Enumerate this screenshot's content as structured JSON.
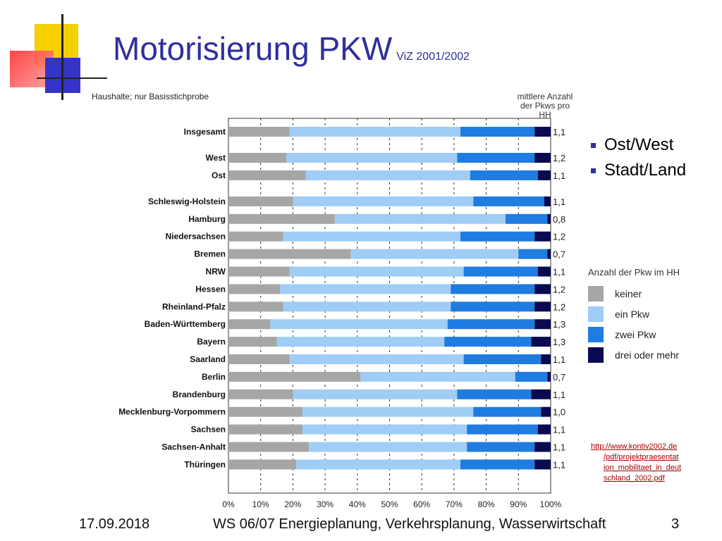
{
  "title": "Motorisierung PKW",
  "title_source": "ViZ 2001/2002",
  "chart_note": "Haushalte; nur Basisstichprobe",
  "column_header": [
    "mittlere Anzahl",
    "der Pkws pro",
    "HH"
  ],
  "bullets": [
    "Ost/West",
    "Stadt/Land"
  ],
  "legend_title": "Anzahl der Pkw  im HH",
  "source_link": [
    "http://www.kontiv2002.de",
    "/pdf/projektpraesentat",
    "ion_mobilitaet_in_deut",
    "schland_2002.pdf"
  ],
  "footer": {
    "date": "17.09.2018",
    "center": "WS 06/07 Energieplanung, Verkehrsplanung, Wasserwirtschaft",
    "page": "3"
  },
  "colors": {
    "keiner": "#a6a6a6",
    "ein": "#9fcdf5",
    "zwei": "#1f7ce0",
    "drei": "#0a0a50",
    "accent": "#2f2f9e"
  },
  "chart_data": {
    "type": "bar",
    "orientation": "horizontal",
    "stacked": true,
    "xlim": [
      0,
      100
    ],
    "x_ticks": [
      "0%",
      "10%",
      "20%",
      "30%",
      "40%",
      "50%",
      "60%",
      "70%",
      "80%",
      "90%",
      "100%"
    ],
    "grid": "vertical dashed",
    "legend_position": "right",
    "series": [
      {
        "name": "keiner",
        "color": "#a6a6a6"
      },
      {
        "name": "ein Pkw",
        "color": "#9fcdf5"
      },
      {
        "name": "zwei Pkw",
        "color": "#1f7ce0"
      },
      {
        "name": "drei oder mehr",
        "color": "#0a0a50"
      }
    ],
    "rows": [
      {
        "label": "Insgesamt",
        "values": [
          19,
          53,
          23,
          5
        ],
        "avg": "1,1",
        "group": 0
      },
      {
        "label": "West",
        "values": [
          18,
          53,
          24,
          5
        ],
        "avg": "1,2",
        "group": 1
      },
      {
        "label": "Ost",
        "values": [
          24,
          51,
          21,
          4
        ],
        "avg": "1,1",
        "group": 1
      },
      {
        "label": "Schleswig-Holstein",
        "values": [
          20,
          56,
          22,
          2
        ],
        "avg": "1,1",
        "group": 2
      },
      {
        "label": "Hamburg",
        "values": [
          33,
          53,
          13,
          1
        ],
        "avg": "0,8",
        "group": 2
      },
      {
        "label": "Niedersachsen",
        "values": [
          17,
          55,
          23,
          5
        ],
        "avg": "1,2",
        "group": 2
      },
      {
        "label": "Bremen",
        "values": [
          38,
          52,
          9,
          1
        ],
        "avg": "0,7",
        "group": 2
      },
      {
        "label": "NRW",
        "values": [
          19,
          54,
          23,
          4
        ],
        "avg": "1,1",
        "group": 2
      },
      {
        "label": "Hessen",
        "values": [
          16,
          53,
          26,
          5
        ],
        "avg": "1,2",
        "group": 2
      },
      {
        "label": "Rheinland-Pfalz",
        "values": [
          17,
          52,
          26,
          5
        ],
        "avg": "1,2",
        "group": 2
      },
      {
        "label": "Baden-Württemberg",
        "values": [
          13,
          55,
          27,
          5
        ],
        "avg": "1,3",
        "group": 2
      },
      {
        "label": "Bayern",
        "values": [
          15,
          52,
          27,
          6
        ],
        "avg": "1,3",
        "group": 2
      },
      {
        "label": "Saarland",
        "values": [
          19,
          54,
          24,
          3
        ],
        "avg": "1,1",
        "group": 2
      },
      {
        "label": "Berlin",
        "values": [
          41,
          48,
          10,
          1
        ],
        "avg": "0,7",
        "group": 2
      },
      {
        "label": "Brandenburg",
        "values": [
          20,
          51,
          23,
          6
        ],
        "avg": "1,1",
        "group": 2
      },
      {
        "label": "Mecklenburg-Vorpommern",
        "values": [
          23,
          53,
          21,
          3
        ],
        "avg": "1,0",
        "group": 2
      },
      {
        "label": "Sachsen",
        "values": [
          23,
          51,
          22,
          4
        ],
        "avg": "1,1",
        "group": 2
      },
      {
        "label": "Sachsen-Anhalt",
        "values": [
          25,
          49,
          21,
          5
        ],
        "avg": "1,1",
        "group": 2
      },
      {
        "label": "Thüringen",
        "values": [
          21,
          51,
          23,
          5
        ],
        "avg": "1,1",
        "group": 2
      }
    ]
  }
}
